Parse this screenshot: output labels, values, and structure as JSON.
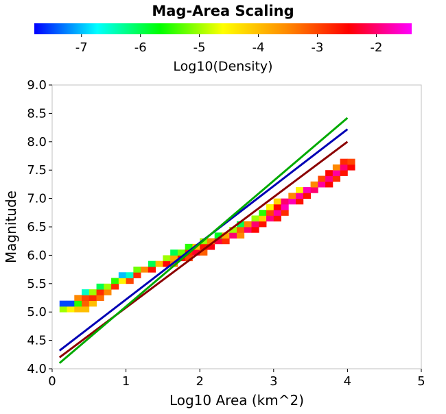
{
  "chart_data": {
    "type": "heatmap",
    "title": "Mag-Area Scaling",
    "xlabel": "Log10 Area (km^2)",
    "ylabel": "Magnitude",
    "xlim": [
      0,
      5
    ],
    "ylim": [
      4.0,
      9.0
    ],
    "xticks": [
      "0",
      "1",
      "2",
      "3",
      "4",
      "5"
    ],
    "yticks": [
      "4.0",
      "4.5",
      "5.0",
      "5.5",
      "6.0",
      "6.5",
      "7.0",
      "7.5",
      "8.0",
      "8.5",
      "9.0"
    ],
    "grid": false,
    "colorbar": {
      "label": "Log10(Density)",
      "range": [
        -7.8,
        -1.4
      ],
      "ticks": [
        "-7",
        "-6",
        "-5",
        "-4",
        "-3",
        "-2"
      ],
      "colormap": [
        "#0000ff",
        "#00ffff",
        "#00ff00",
        "#ffff00",
        "#ff8c00",
        "#ff0000",
        "#ff00ff"
      ]
    },
    "bin_size": {
      "x": 0.1,
      "y": 0.1
    },
    "density_bins": [
      [
        0.1,
        5.0,
        -5.0
      ],
      [
        0.2,
        5.0,
        -4.5
      ],
      [
        0.3,
        5.0,
        -4.0
      ],
      [
        0.4,
        5.0,
        -4.0
      ],
      [
        0.1,
        5.1,
        -7.5
      ],
      [
        0.2,
        5.1,
        -7.5
      ],
      [
        0.3,
        5.1,
        -5.5
      ],
      [
        0.4,
        5.1,
        -3.2
      ],
      [
        0.5,
        5.1,
        -4.0
      ],
      [
        0.3,
        5.2,
        -3.5
      ],
      [
        0.4,
        5.2,
        -3.0
      ],
      [
        0.5,
        5.2,
        -2.8
      ],
      [
        0.6,
        5.2,
        -3.3
      ],
      [
        0.4,
        5.3,
        -6.5
      ],
      [
        0.5,
        5.3,
        -5.0
      ],
      [
        0.6,
        5.3,
        -2.8
      ],
      [
        0.7,
        5.3,
        -3.5
      ],
      [
        0.6,
        5.4,
        -6.0
      ],
      [
        0.7,
        5.4,
        -5.0
      ],
      [
        0.8,
        5.4,
        -2.8
      ],
      [
        0.8,
        5.5,
        -5.5
      ],
      [
        0.9,
        5.5,
        -4.5
      ],
      [
        1.0,
        5.5,
        -3.0
      ],
      [
        0.9,
        5.6,
        -7.0
      ],
      [
        1.0,
        5.6,
        -6.5
      ],
      [
        1.1,
        5.6,
        -2.8
      ],
      [
        1.1,
        5.7,
        -5.2
      ],
      [
        1.2,
        5.7,
        -3.5
      ],
      [
        1.3,
        5.7,
        -2.6
      ],
      [
        1.3,
        5.8,
        -6.0
      ],
      [
        1.4,
        5.8,
        -4.0
      ],
      [
        1.5,
        5.8,
        -2.5
      ],
      [
        1.6,
        5.8,
        -3.5
      ],
      [
        1.5,
        5.9,
        -5.0
      ],
      [
        1.6,
        5.9,
        -3.8
      ],
      [
        1.7,
        5.9,
        -2.5
      ],
      [
        1.8,
        5.9,
        -3.0
      ],
      [
        1.6,
        6.0,
        -6.0
      ],
      [
        1.7,
        6.0,
        -5.2
      ],
      [
        1.8,
        6.0,
        -2.8
      ],
      [
        1.9,
        6.0,
        -2.3
      ],
      [
        2.0,
        6.0,
        -3.2
      ],
      [
        1.8,
        6.1,
        -5.5
      ],
      [
        1.9,
        6.1,
        -4.0
      ],
      [
        2.0,
        6.1,
        -2.6
      ],
      [
        2.1,
        6.1,
        -2.4
      ],
      [
        2.0,
        6.2,
        -5.0
      ],
      [
        2.1,
        6.2,
        -3.5
      ],
      [
        2.2,
        6.2,
        -2.2
      ],
      [
        2.3,
        6.2,
        -2.8
      ],
      [
        2.2,
        6.3,
        -5.8
      ],
      [
        2.3,
        6.3,
        -3.8
      ],
      [
        2.4,
        6.3,
        -2.0
      ],
      [
        2.5,
        6.3,
        -3.5
      ],
      [
        2.4,
        6.4,
        -5.0
      ],
      [
        2.5,
        6.4,
        -3.2
      ],
      [
        2.6,
        6.4,
        -2.0
      ],
      [
        2.7,
        6.4,
        -2.5
      ],
      [
        2.5,
        6.5,
        -6.0
      ],
      [
        2.6,
        6.5,
        -3.5
      ],
      [
        2.7,
        6.5,
        -2.0
      ],
      [
        2.8,
        6.5,
        -2.6
      ],
      [
        2.7,
        6.6,
        -5.0
      ],
      [
        2.8,
        6.6,
        -4.2
      ],
      [
        2.9,
        6.6,
        -1.9
      ],
      [
        3.0,
        6.6,
        -2.6
      ],
      [
        2.8,
        6.7,
        -5.5
      ],
      [
        2.9,
        6.7,
        -3.0
      ],
      [
        3.0,
        6.7,
        -1.8
      ],
      [
        3.1,
        6.7,
        -2.8
      ],
      [
        2.9,
        6.8,
        -4.5
      ],
      [
        3.0,
        6.8,
        -2.5
      ],
      [
        3.1,
        6.8,
        -1.7
      ],
      [
        3.0,
        6.9,
        -4.2
      ],
      [
        3.1,
        6.9,
        -2.0
      ],
      [
        3.2,
        6.9,
        -1.7
      ],
      [
        3.3,
        6.9,
        -2.6
      ],
      [
        3.2,
        7.0,
        -3.5
      ],
      [
        3.3,
        7.0,
        -1.8
      ],
      [
        3.4,
        7.0,
        -2.6
      ],
      [
        3.3,
        7.1,
        -4.5
      ],
      [
        3.4,
        7.1,
        -1.7
      ],
      [
        3.5,
        7.1,
        -2.0
      ],
      [
        3.5,
        7.2,
        -3.5
      ],
      [
        3.6,
        7.2,
        -1.8
      ],
      [
        3.7,
        7.2,
        -2.5
      ],
      [
        3.6,
        7.3,
        -3.0
      ],
      [
        3.7,
        7.3,
        -1.9
      ],
      [
        3.8,
        7.3,
        -2.8
      ],
      [
        3.7,
        7.4,
        -2.5
      ],
      [
        3.8,
        7.4,
        -1.8
      ],
      [
        3.9,
        7.4,
        -2.6
      ],
      [
        3.8,
        7.5,
        -3.5
      ],
      [
        3.9,
        7.5,
        -2.0
      ],
      [
        4.0,
        7.5,
        -2.5
      ],
      [
        3.9,
        7.6,
        -2.8
      ],
      [
        4.0,
        7.6,
        -3.0
      ]
    ],
    "series": [
      {
        "color": "#0000b4",
        "type": "line",
        "x": [
          0.1,
          4.0
        ],
        "y": [
          4.32,
          8.22
        ]
      },
      {
        "color": "#8b0000",
        "type": "line",
        "x": [
          0.1,
          4.0
        ],
        "y": [
          4.2,
          8.0
        ]
      },
      {
        "color": "#00aa00",
        "type": "line",
        "x": [
          0.1,
          4.0
        ],
        "y": [
          4.1,
          8.42
        ]
      }
    ]
  }
}
